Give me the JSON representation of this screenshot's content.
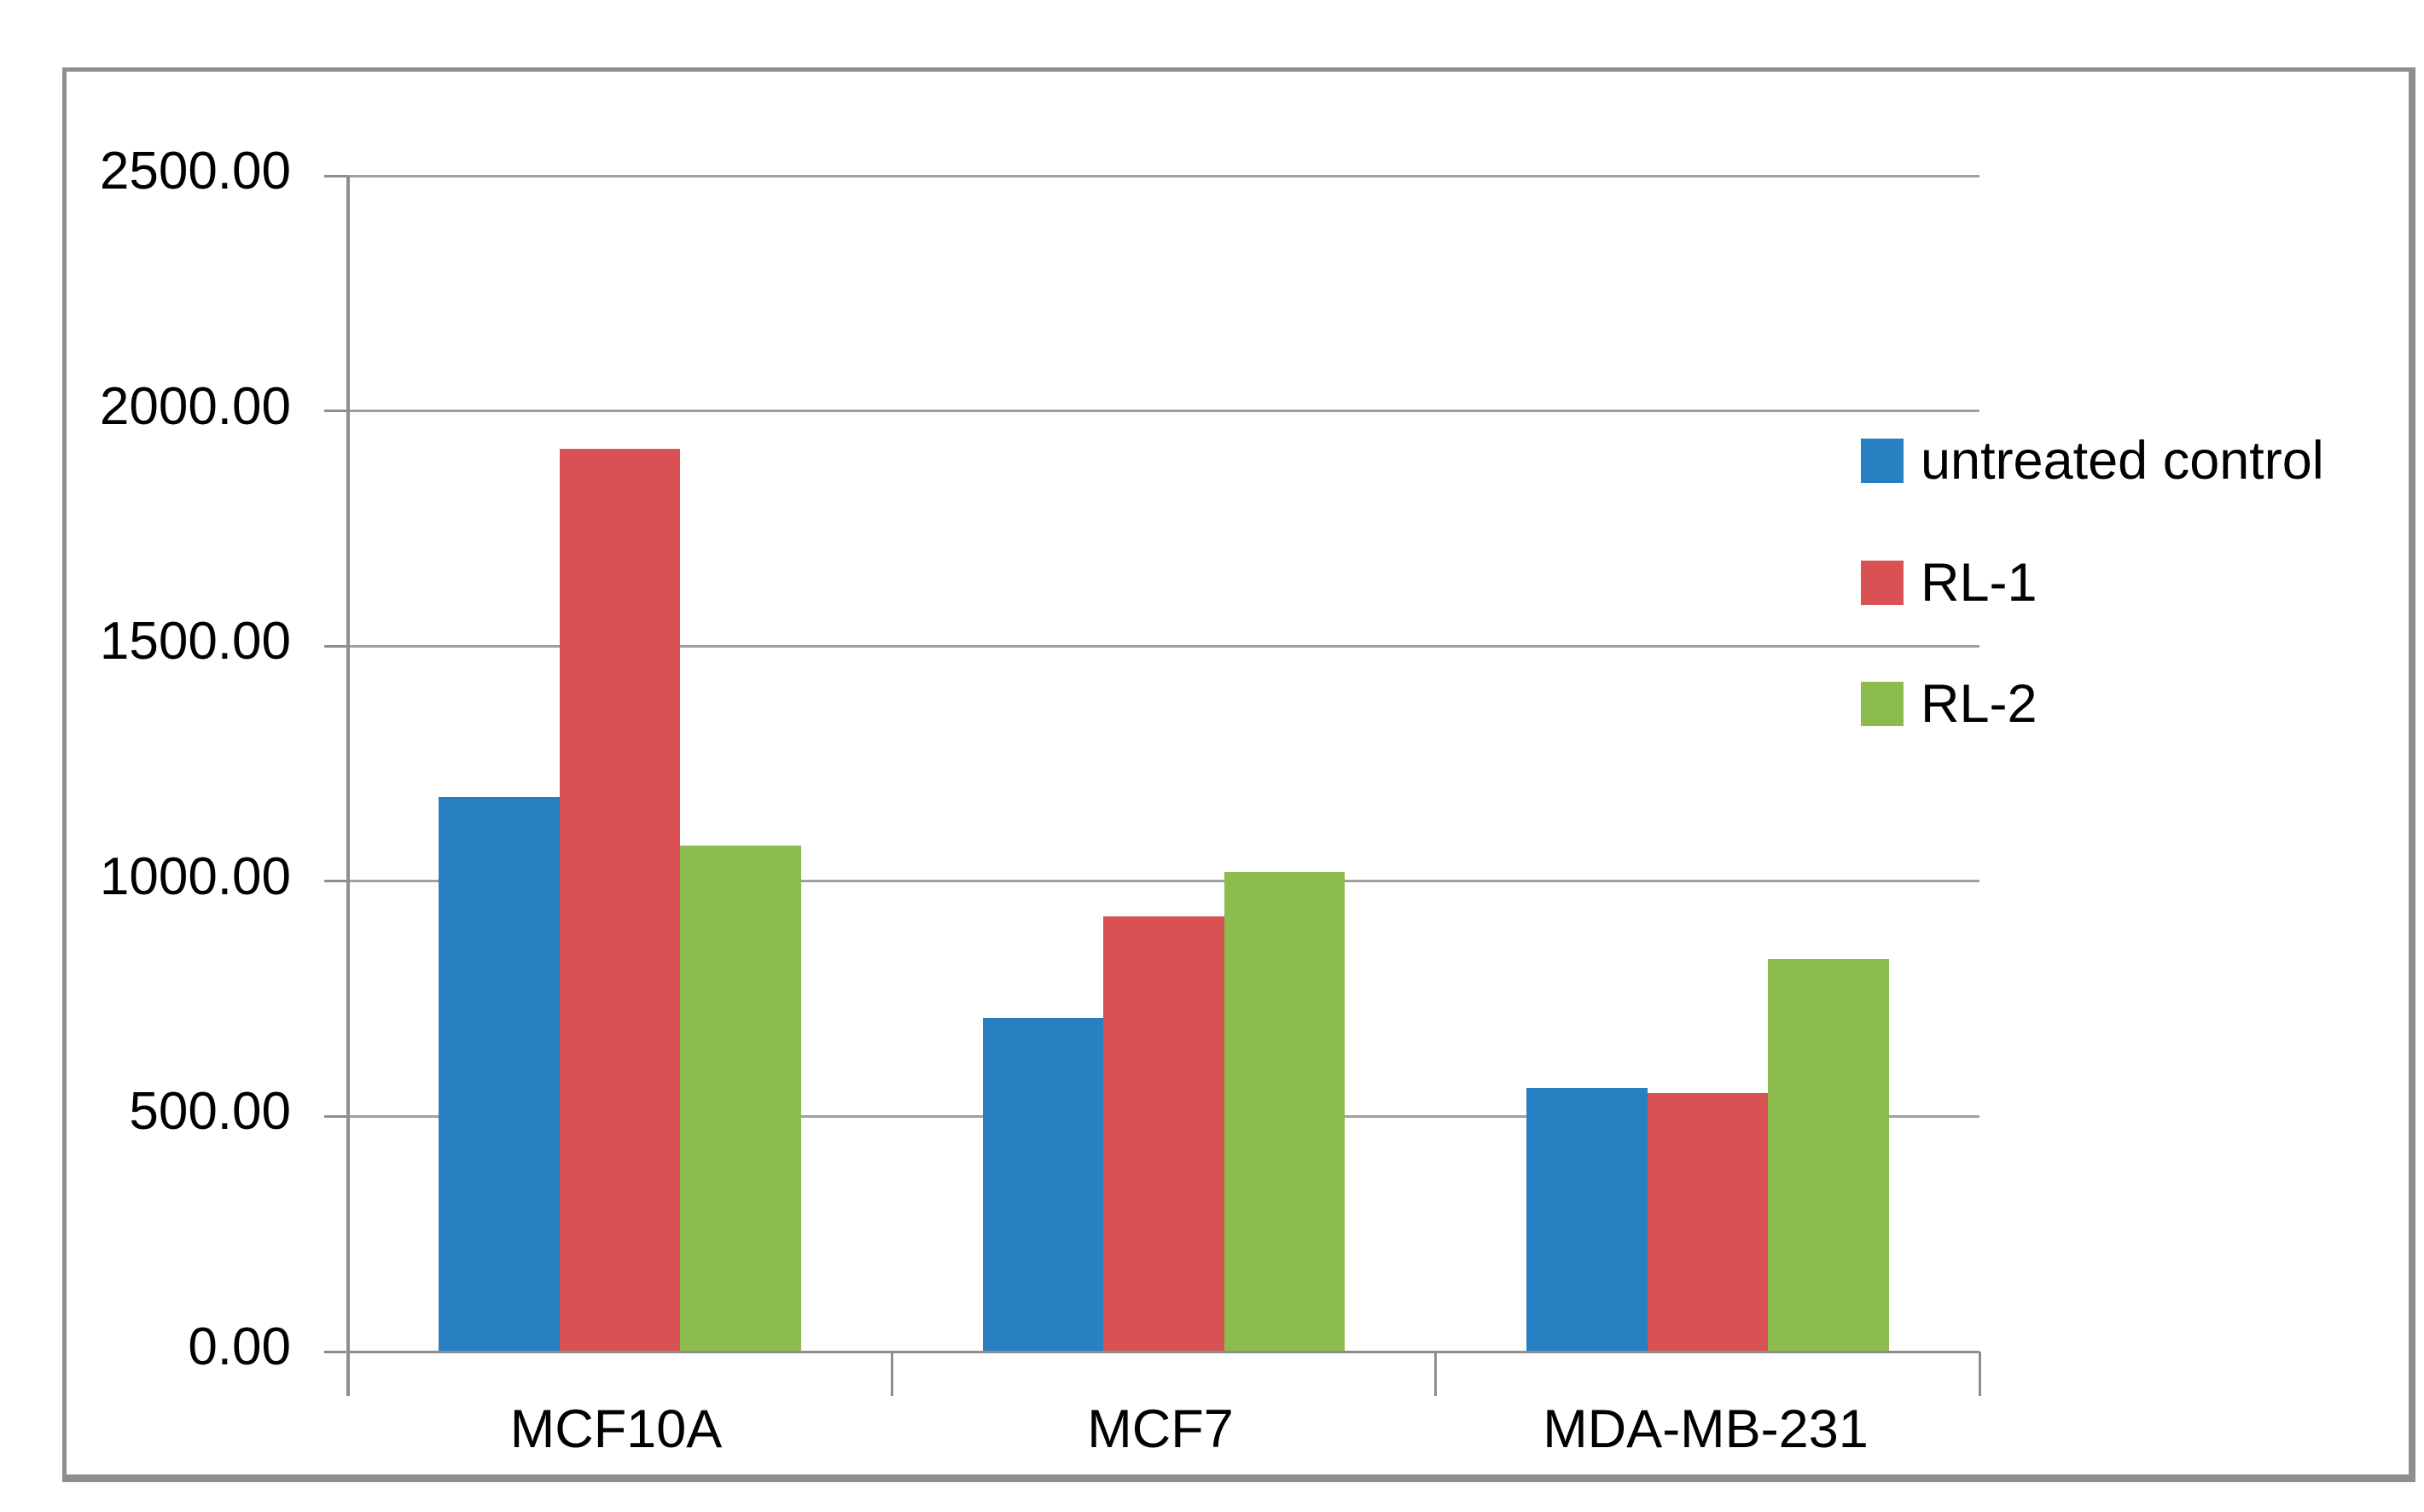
{
  "chart_data": {
    "type": "bar",
    "title": "",
    "categories": [
      "MCF10A",
      "MCF7",
      "MDA-MB-231"
    ],
    "series": [
      {
        "name": "untreated control",
        "color": "#2880C2",
        "values": [
          1180,
          710,
          560
        ]
      },
      {
        "name": "RL-1",
        "color": "#D95152",
        "values": [
          1920,
          925,
          550
        ]
      },
      {
        "name": "RL-2",
        "color": "#8CBB4E",
        "values": [
          1075,
          1020,
          835
        ]
      }
    ],
    "y_axis": {
      "min": 0,
      "max": 2500,
      "step": 500,
      "tick_labels": [
        "2500.00",
        "2000.00",
        "1500.00",
        "1000.00",
        "500.00",
        "0.00"
      ]
    },
    "x_axis": {
      "labels": [
        "MCF10A",
        "MCF7",
        "MDA-MB-231"
      ]
    },
    "legend": {
      "position": "right"
    },
    "grid": true,
    "gap_width_percent": 150
  },
  "colors": {
    "background": "#FFFFFF",
    "frame_border": "#8F8F8F",
    "gridline": "#A0A0A0",
    "axis_line": "#8E8E8E",
    "text": "#000000"
  }
}
